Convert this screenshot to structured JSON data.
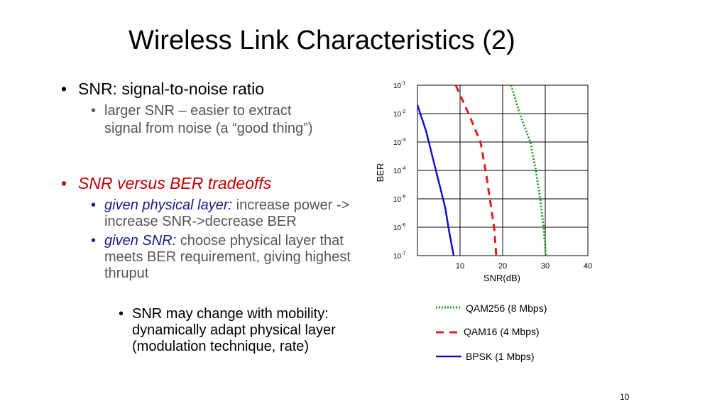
{
  "slide": {
    "title": "Wireless Link Characteristics (2)",
    "page_number": "10",
    "bullets": {
      "b1": "SNR: signal-to-noise ratio",
      "b1_sub_line1": "larger SNR – easier to extract",
      "b1_sub_line2": "signal from noise (a “good thing”)",
      "b2": "SNR versus BER tradeoffs",
      "b2_sub1_italic": "given physical layer:",
      "b2_sub1_rest": " increase power ->",
      "b2_sub1_line2": "increase SNR->decrease BER",
      "b2_sub2_italic": "given SNR:",
      "b2_sub2_rest": " choose physical layer that",
      "b2_sub2_line2": "meets BER requirement, giving highest",
      "b2_sub2_line3": "thruput",
      "b3_line1": "SNR may change with mobility:",
      "b3_line2": "dynamically adapt physical layer",
      "b3_line3": "(modulation technique, rate)"
    },
    "bullet_glyph": "•",
    "colors": {
      "title": "#000000",
      "highlight_red": "#c00000",
      "navy": "#1a1a8c",
      "qam256": "#1aa31a",
      "qam16": "#e02020",
      "bpsk": "#1010d0"
    }
  },
  "chart_data": {
    "type": "line",
    "xlabel": "SNR(dB)",
    "ylabel": "BER",
    "x_ticks": [
      "10",
      "20",
      "30",
      "40"
    ],
    "y_ticks": [
      {
        "base": "10",
        "exp": "-1"
      },
      {
        "base": "10",
        "exp": "-2"
      },
      {
        "base": "10",
        "exp": "-3"
      },
      {
        "base": "10",
        "exp": "-4"
      },
      {
        "base": "10",
        "exp": "-5"
      },
      {
        "base": "10",
        "exp": "-6"
      },
      {
        "base": "10",
        "exp": "-7"
      }
    ],
    "xlim": [
      0,
      40
    ],
    "ylim_log10": [
      -7,
      -1
    ],
    "log_y": true,
    "grid": true,
    "legend_position": "bottom-right",
    "series": [
      {
        "name": "QAM256 (8 Mbps)",
        "style": "dotted",
        "color": "#1aa31a",
        "points": [
          [
            22,
            -1
          ],
          [
            24,
            -2
          ],
          [
            26.5,
            -3
          ],
          [
            27.8,
            -4
          ],
          [
            28.8,
            -5
          ],
          [
            29.6,
            -6
          ],
          [
            30.2,
            -7
          ]
        ]
      },
      {
        "name": "QAM16 (4 Mbps)",
        "style": "dashed",
        "color": "#e02020",
        "points": [
          [
            9,
            -1
          ],
          [
            12,
            -2
          ],
          [
            14.8,
            -3
          ],
          [
            16,
            -4
          ],
          [
            17,
            -5
          ],
          [
            18,
            -6
          ],
          [
            18.5,
            -7
          ]
        ]
      },
      {
        "name": "BPSK (1 Mbps)",
        "style": "solid",
        "color": "#1010d0",
        "points": [
          [
            0,
            -1.7
          ],
          [
            2,
            -2.6
          ],
          [
            3.5,
            -3.5
          ],
          [
            5,
            -4.4
          ],
          [
            6.5,
            -5.3
          ],
          [
            7.5,
            -6.2
          ],
          [
            8.5,
            -7
          ]
        ]
      }
    ]
  }
}
